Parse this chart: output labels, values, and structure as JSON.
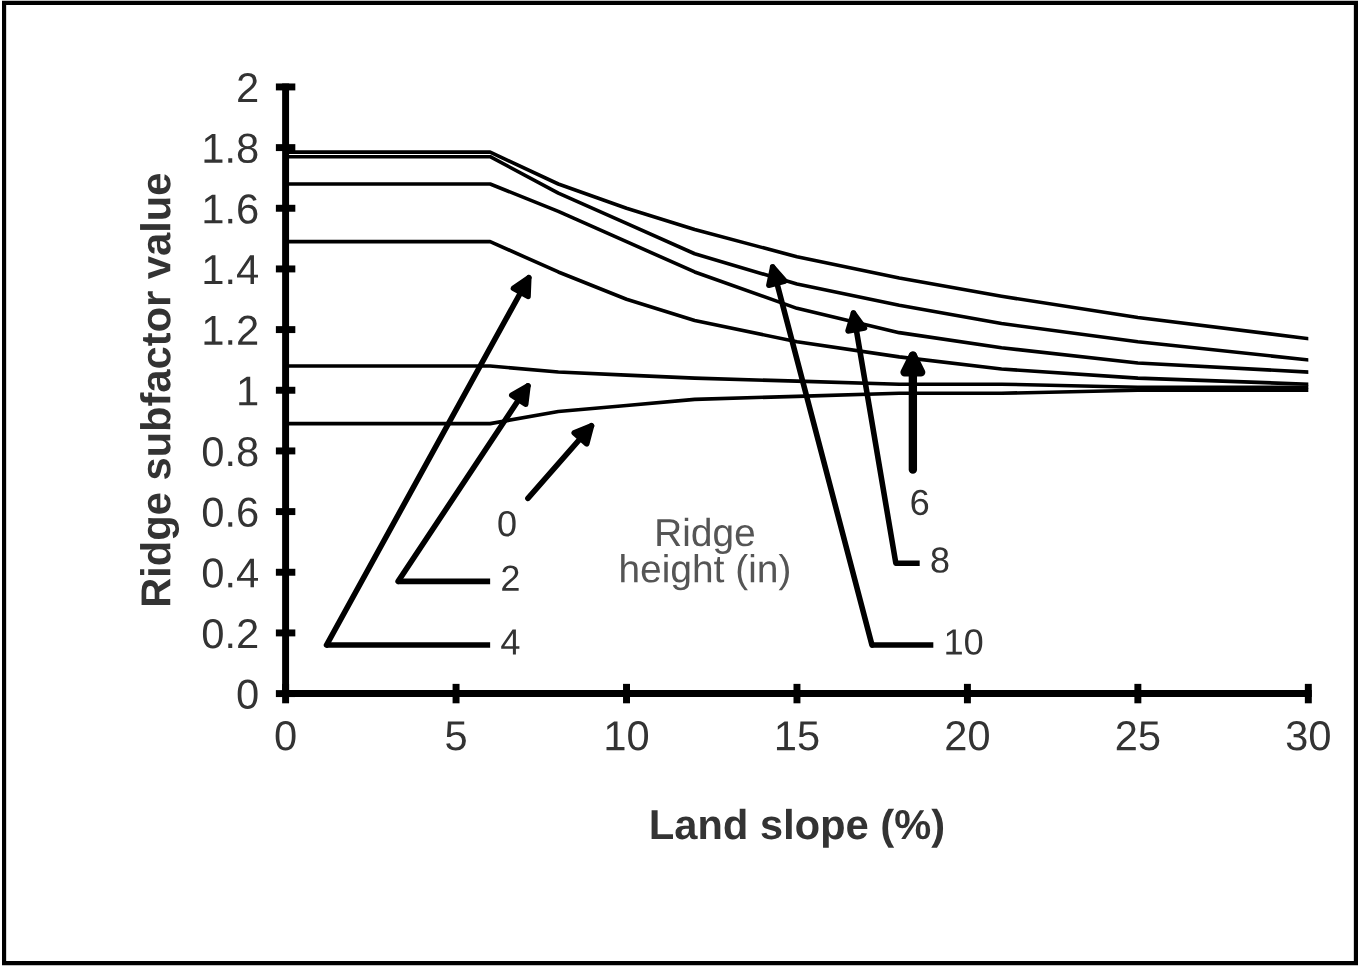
{
  "chart_data": {
    "type": "line",
    "xlabel": "Land slope (%)",
    "ylabel": "Ridge subfactor value",
    "x": [
      0,
      6,
      8,
      10,
      12,
      15,
      18,
      21,
      25,
      30
    ],
    "series": [
      {
        "name": "0",
        "color": "#000000",
        "values": [
          0.89,
          0.89,
          0.93,
          0.95,
          0.97,
          0.98,
          0.99,
          0.99,
          1.0,
          1.0
        ]
      },
      {
        "name": "2",
        "color": "#000000",
        "values": [
          1.08,
          1.08,
          1.06,
          1.05,
          1.04,
          1.03,
          1.02,
          1.02,
          1.01,
          1.01
        ]
      },
      {
        "name": "4",
        "color": "#000000",
        "values": [
          1.49,
          1.49,
          1.39,
          1.3,
          1.23,
          1.16,
          1.11,
          1.07,
          1.04,
          1.02
        ]
      },
      {
        "name": "6",
        "color": "#000000",
        "values": [
          1.68,
          1.68,
          1.59,
          1.49,
          1.39,
          1.27,
          1.19,
          1.14,
          1.09,
          1.06
        ]
      },
      {
        "name": "8",
        "color": "#000000",
        "values": [
          1.77,
          1.77,
          1.65,
          1.55,
          1.45,
          1.35,
          1.28,
          1.22,
          1.16,
          1.1
        ]
      },
      {
        "name": "10",
        "color": "#000000",
        "values": [
          1.785,
          1.785,
          1.68,
          1.6,
          1.53,
          1.44,
          1.37,
          1.31,
          1.24,
          1.17
        ]
      }
    ],
    "legend_title": "Ridge height (in)",
    "xlim": [
      0,
      30
    ],
    "xticks": [
      0,
      5,
      10,
      15,
      20,
      25,
      30
    ],
    "ylim": [
      0,
      2
    ],
    "yticks": [
      0,
      0.2,
      0.4,
      0.6,
      0.8,
      1,
      1.2,
      1.4,
      1.6,
      1.8,
      2
    ],
    "grid": false,
    "legend": "bottom",
    "marker": "none",
    "line_style": "solid"
  }
}
